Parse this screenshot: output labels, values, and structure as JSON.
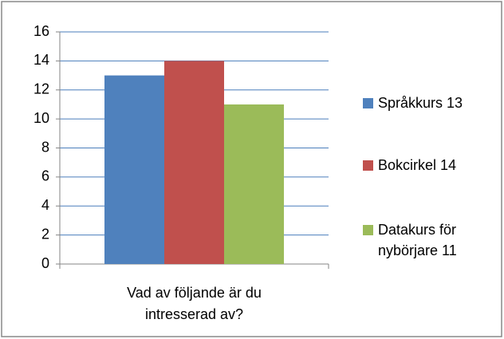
{
  "chart_data": {
    "type": "bar",
    "categories": [
      "Vad av följande är du intresserad av?"
    ],
    "series": [
      {
        "name": "Språkkurs 13",
        "color": "#4f81bd",
        "values": [
          13
        ]
      },
      {
        "name": "Bokcirkel 14",
        "color": "#c0504d",
        "values": [
          14
        ]
      },
      {
        "name": "Datakurs för nybörjare 11",
        "color": "#9bbb59",
        "values": [
          11
        ]
      }
    ],
    "ylim": [
      0,
      16
    ],
    "yticks": [
      0,
      2,
      4,
      6,
      8,
      10,
      12,
      14,
      16
    ],
    "grid": true,
    "legend": "right"
  }
}
